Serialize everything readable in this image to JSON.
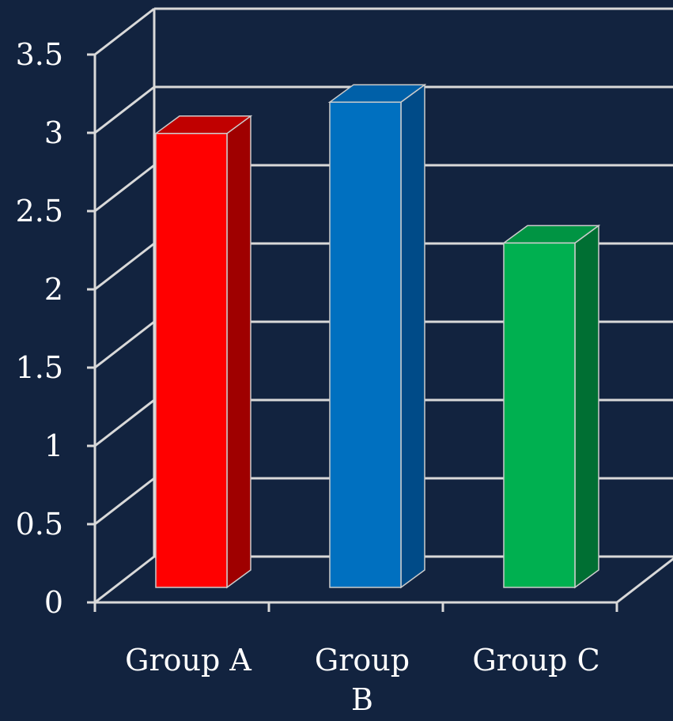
{
  "chart_data": {
    "type": "bar",
    "categories": [
      "Group A",
      "Group B",
      "Group C"
    ],
    "category_lines": [
      [
        "Group A"
      ],
      [
        "Group",
        "B"
      ],
      [
        "Group C"
      ]
    ],
    "values": [
      2.9,
      3.1,
      2.2
    ],
    "colors": [
      {
        "front": "#ff0000",
        "top": "#c00000",
        "side": "#9f0000"
      },
      {
        "front": "#0070c0",
        "top": "#0060a8",
        "side": "#004b88"
      },
      {
        "front": "#00b050",
        "top": "#009443",
        "side": "#006f33"
      }
    ],
    "ylim": [
      0,
      3.5
    ],
    "yticks": [
      "0",
      "0.5",
      "1",
      "1.5",
      "2",
      "2.5",
      "3",
      "3.5"
    ],
    "grid": true,
    "title": "",
    "xlabel": "",
    "ylabel": ""
  },
  "style": {
    "background": "#12233f",
    "grid_color": "#d9d9d9"
  }
}
